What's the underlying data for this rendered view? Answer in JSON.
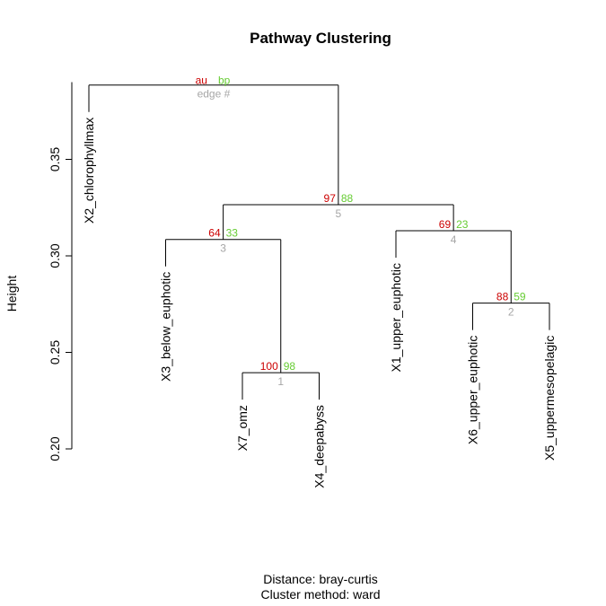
{
  "chart_data": {
    "type": "dendrogram",
    "title": "Pathway Clustering",
    "ylabel": "Height",
    "ylim": [
      0.2,
      0.39
    ],
    "yticks": [
      0.2,
      0.25,
      0.3,
      0.35
    ],
    "ytick_labels": [
      "0.20",
      "0.25",
      "0.30",
      "0.35"
    ],
    "leaves": [
      {
        "id": "X2",
        "label": "X2_chlorophyllmax"
      },
      {
        "id": "X3",
        "label": "X3_below_euphotic"
      },
      {
        "id": "X7",
        "label": "X7_omz"
      },
      {
        "id": "X4",
        "label": "X4_deepabyss"
      },
      {
        "id": "X1",
        "label": "X1_upper_euphotic"
      },
      {
        "id": "X6",
        "label": "X6_upper_euphotic"
      },
      {
        "id": "X5",
        "label": "X5_uppermesopelagic"
      }
    ],
    "merges": [
      {
        "edge": "1",
        "left": "X7",
        "right": "X4",
        "height": 0.2395,
        "au": "100",
        "bp": "98"
      },
      {
        "edge": "2",
        "left": "X6",
        "right": "X5",
        "height": 0.2755,
        "au": "88",
        "bp": "59"
      },
      {
        "edge": "3",
        "left": "X3",
        "right": "1",
        "height": 0.3085,
        "au": "64",
        "bp": "33"
      },
      {
        "edge": "4",
        "left": "X1",
        "right": "2",
        "height": 0.313,
        "au": "69",
        "bp": "23"
      },
      {
        "edge": "5",
        "left": "3",
        "right": "4",
        "height": 0.3265,
        "au": "97",
        "bp": "88"
      }
    ],
    "top": {
      "left": "X2",
      "right": "5",
      "height": 0.3885
    },
    "legend": {
      "au": "au",
      "bp": "bp",
      "edge": "edge #"
    },
    "colors": {
      "au": "#cc0000",
      "bp": "#66cc33",
      "edge": "#a6a6a6"
    }
  },
  "footer": {
    "distance": "Distance:  bray-curtis",
    "method": "Cluster method: ward"
  }
}
